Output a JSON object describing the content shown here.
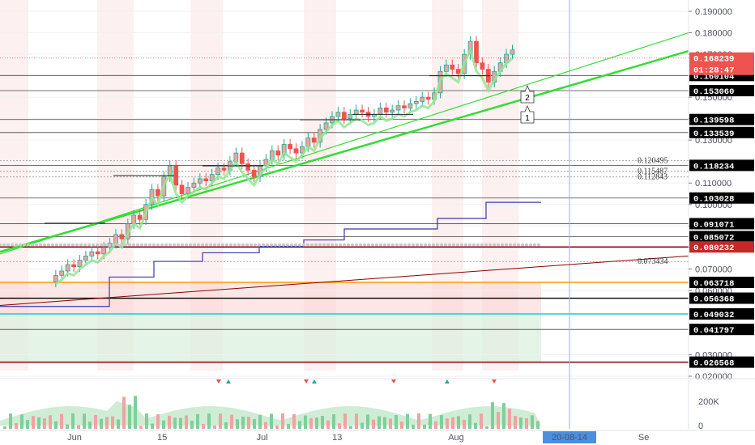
{
  "chart_data": {
    "type": "candlestick",
    "colors": {
      "up": "#26a69a",
      "down": "#ef5350",
      "candle_up_fill": "#e8a79d",
      "support_line": "#33dd33",
      "ma_line": "#90e890",
      "step_line": "#3a3aa8",
      "current_price": "#ef5350",
      "dark_red_line": "#8b0000",
      "orange_line": "#ff9800",
      "teal_line": "#26c6da",
      "timer": "#000000"
    },
    "ylim": [
      0.018,
      0.197
    ],
    "y_ticks": [
      "0.190000",
      "0.180000",
      "0.170000",
      "0.150000",
      "0.140000",
      "0.130000",
      "0.110000",
      "0.100000",
      "0.090000",
      "0.080000",
      "0.070000",
      "0.060000",
      "0.030000",
      "0.020000"
    ],
    "y_tick_values": [
      0.19,
      0.18,
      0.17,
      0.15,
      0.14,
      0.13,
      0.11,
      0.1,
      0.09,
      0.08,
      0.07,
      0.06,
      0.03,
      0.02
    ],
    "x_ticks": [
      "Jun",
      "15",
      "Jul",
      "13",
      "Aug",
      "Se"
    ],
    "x_tick_days": [
      1,
      15,
      31,
      43,
      62,
      92
    ],
    "crosshair_date": "20-08-14",
    "current_price": {
      "value": 0.168239,
      "label": "0.168239",
      "countdown": "01:28:47"
    },
    "price_tags": [
      {
        "label": "0.160104",
        "value": 0.160104,
        "style": "dark"
      },
      {
        "label": "0.153060",
        "value": 0.15306,
        "style": "dark"
      },
      {
        "label": "0.139598",
        "value": 0.139598,
        "style": "dark"
      },
      {
        "label": "0.133539",
        "value": 0.133539,
        "style": "dark"
      },
      {
        "label": "0.118234",
        "value": 0.118234,
        "style": "dark"
      },
      {
        "label": "0.103028",
        "value": 0.103028,
        "style": "dark"
      },
      {
        "label": "0.091071",
        "value": 0.091071,
        "style": "dark"
      },
      {
        "label": "0.085072",
        "value": 0.085072,
        "style": "dark"
      },
      {
        "label": "0.080232",
        "value": 0.080232,
        "style": "red"
      },
      {
        "label": "0.063718",
        "value": 0.063718,
        "style": "dark"
      },
      {
        "label": "0.056368",
        "value": 0.056368,
        "style": "dark"
      },
      {
        "label": "0.049032",
        "value": 0.049032,
        "style": "dark"
      },
      {
        "label": "0.041797",
        "value": 0.041797,
        "style": "dark"
      },
      {
        "label": "0.026568",
        "value": 0.026568,
        "style": "dark"
      }
    ],
    "annotations": [
      {
        "label": "0.120495",
        "value": 0.120495
      },
      {
        "label": "0.115487",
        "value": 0.115487
      },
      {
        "label": "0.112843",
        "value": 0.112843
      },
      {
        "label": "0.073434",
        "value": 0.073434
      }
    ],
    "wave_labels": [
      "2",
      "1"
    ],
    "volume_axis": [
      "200K",
      "0"
    ],
    "candles_close": [
      0.067,
      0.069,
      0.072,
      0.071,
      0.074,
      0.076,
      0.078,
      0.077,
      0.08,
      0.082,
      0.086,
      0.084,
      0.091,
      0.095,
      0.093,
      0.1,
      0.107,
      0.104,
      0.113,
      0.118,
      0.109,
      0.105,
      0.108,
      0.11,
      0.112,
      0.111,
      0.114,
      0.117,
      0.116,
      0.12,
      0.124,
      0.119,
      0.116,
      0.113,
      0.118,
      0.121,
      0.125,
      0.123,
      0.128,
      0.126,
      0.124,
      0.127,
      0.131,
      0.129,
      0.135,
      0.138,
      0.141,
      0.143,
      0.14,
      0.142,
      0.144,
      0.143,
      0.141,
      0.142,
      0.145,
      0.143,
      0.144,
      0.146,
      0.145,
      0.147,
      0.148,
      0.15,
      0.149,
      0.152,
      0.162,
      0.165,
      0.163,
      0.161,
      0.17,
      0.176,
      0.166,
      0.163,
      0.157,
      0.162,
      0.166,
      0.17,
      0.172
    ]
  }
}
